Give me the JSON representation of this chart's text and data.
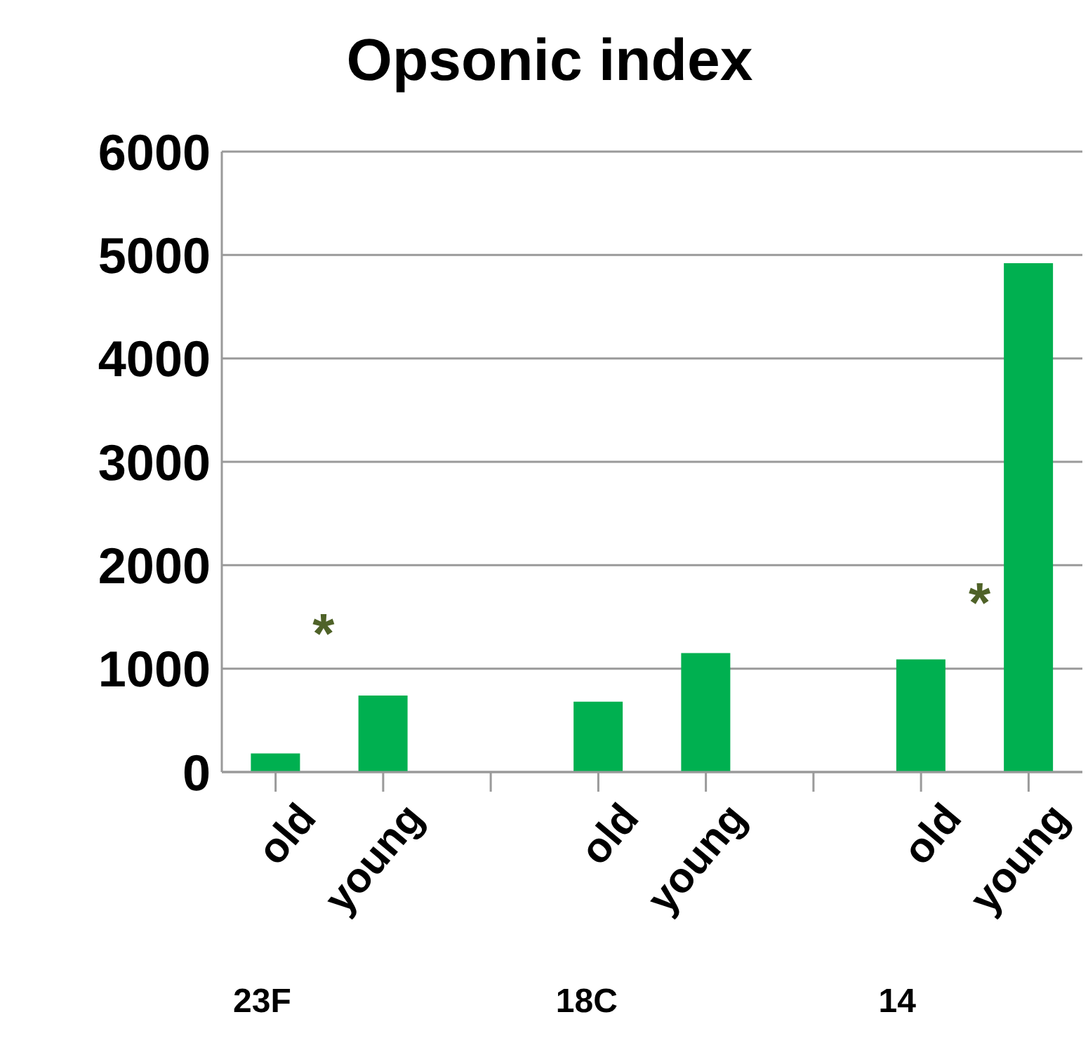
{
  "chart_data": {
    "type": "bar",
    "title": "Opsonic index",
    "categories": [
      "old",
      "young",
      null,
      "old",
      "young",
      null,
      "old",
      "young"
    ],
    "values": [
      180,
      740,
      null,
      680,
      1150,
      null,
      1090,
      4920
    ],
    "color": "#00b050",
    "ylim": [
      0,
      6000
    ],
    "yticks": [
      0,
      1000,
      2000,
      3000,
      4000,
      5000,
      6000
    ],
    "grid": "y",
    "annotations": [
      "23F",
      "18C",
      "14",
      "*",
      "*"
    ]
  }
}
